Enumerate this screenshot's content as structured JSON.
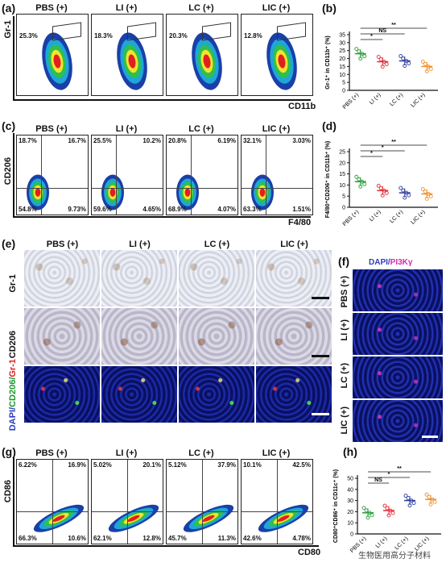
{
  "panels": {
    "a": {
      "label": "(a)",
      "titles": [
        "PBS (+)",
        "LI (+)",
        "LC (+)",
        "LIC (+)"
      ],
      "pcts": [
        "25.3%",
        "18.3%",
        "20.3%",
        "12.8%"
      ],
      "ylabel": "Gr-1",
      "xlabel": "CD11b"
    },
    "b": {
      "label": "(b)",
      "ylabel": "Gr-1⁺ in CD11b⁺ (%)",
      "yticks": [
        "0",
        "5",
        "10",
        "15",
        "20",
        "25",
        "30",
        "35"
      ],
      "cats": [
        "PBS (+)",
        "LI (+)",
        "LC (+)",
        "LIC (+)"
      ],
      "sig": [
        "NS",
        "*",
        "**"
      ]
    },
    "c": {
      "label": "(c)",
      "titles": [
        "PBS (+)",
        "LI (+)",
        "LC (+)",
        "LIC (+)"
      ],
      "q": [
        [
          "18.7%",
          "16.7%",
          "54.8%",
          "9.73%"
        ],
        [
          "25.5%",
          "10.2%",
          "59.6%",
          "4.65%"
        ],
        [
          "20.8%",
          "6.19%",
          "68.9%",
          "4.07%"
        ],
        [
          "32.1%",
          "3.03%",
          "63.3%",
          "1.51%"
        ]
      ],
      "ylabel": "CD206",
      "xlabel": "F4/80"
    },
    "d": {
      "label": "(d)",
      "ylabel": "F4/80⁺CD206⁺ in CD11b⁺ (%)",
      "yticks": [
        "0",
        "5",
        "10",
        "15",
        "20",
        "25"
      ],
      "cats": [
        "PBS (+)",
        "LI (+)",
        "LC (+)",
        "LIC (+)"
      ],
      "sig": [
        "*",
        "*",
        "**"
      ]
    },
    "e": {
      "label": "(e)",
      "titles": [
        "PBS (+)",
        "LI (+)",
        "LC (+)",
        "LIC (+)"
      ],
      "rows": [
        "Gr-1",
        "CD206"
      ],
      "row3": {
        "dapi": "DAPI/",
        "cd206": "CD206/",
        "gr1": "Gr-1"
      }
    },
    "f": {
      "label": "(f)",
      "header": {
        "dapi": "DAPI/",
        "pi3k": "PI3Kγ"
      },
      "rows": [
        "PBS (+)",
        "LI (+)",
        "LC (+)",
        "LIC (+)"
      ]
    },
    "g": {
      "label": "(g)",
      "titles": [
        "PBS (+)",
        "LI (+)",
        "LC (+)",
        "LIC (+)"
      ],
      "q": [
        [
          "6.22%",
          "16.9%",
          "66.3%",
          "10.6%"
        ],
        [
          "5.02%",
          "20.1%",
          "62.1%",
          "12.8%"
        ],
        [
          "5.12%",
          "37.9%",
          "45.7%",
          "11.3%"
        ],
        [
          "10.1%",
          "42.5%",
          "42.6%",
          "4.78%"
        ]
      ],
      "ylabel": "CD86",
      "xlabel": "CD80"
    },
    "h": {
      "label": "(h)",
      "ylabel": "CD80⁺CD86⁺ in CD11c⁺ (%)",
      "yticks": [
        "0",
        "10",
        "20",
        "30",
        "40",
        "50"
      ],
      "cats": [
        "PBS (+)",
        "LI (+)",
        "LC (+)",
        "LIC (+)"
      ],
      "sig": [
        "NS",
        "*",
        "**"
      ]
    }
  },
  "watermark": "生物医用高分子材料",
  "colors": {
    "pbs": "#2e9e3e",
    "li": "#e0303a",
    "lc": "#2f3d9e",
    "lic": "#f0902a",
    "flowHot": "#e02020",
    "flowCold": "#1a3fa8"
  },
  "chart_data": [
    {
      "type": "scatter",
      "panel": "b",
      "categories": [
        "PBS (+)",
        "LI (+)",
        "LC (+)",
        "LIC (+)"
      ],
      "series": [
        {
          "values": [
            23,
            18,
            18.5,
            15
          ]
        }
      ],
      "ylim": [
        0,
        35
      ]
    },
    {
      "type": "scatter",
      "panel": "d",
      "categories": [
        "PBS (+)",
        "LI (+)",
        "LC (+)",
        "LIC (+)"
      ],
      "series": [
        {
          "values": [
            11.5,
            7.5,
            6.5,
            6
          ]
        }
      ],
      "ylim": [
        0,
        25
      ]
    },
    {
      "type": "scatter",
      "panel": "h",
      "categories": [
        "PBS (+)",
        "LI (+)",
        "LC (+)",
        "LIC (+)"
      ],
      "series": [
        {
          "values": [
            19,
            21,
            30,
            31
          ]
        }
      ],
      "ylim": [
        0,
        50
      ]
    }
  ]
}
